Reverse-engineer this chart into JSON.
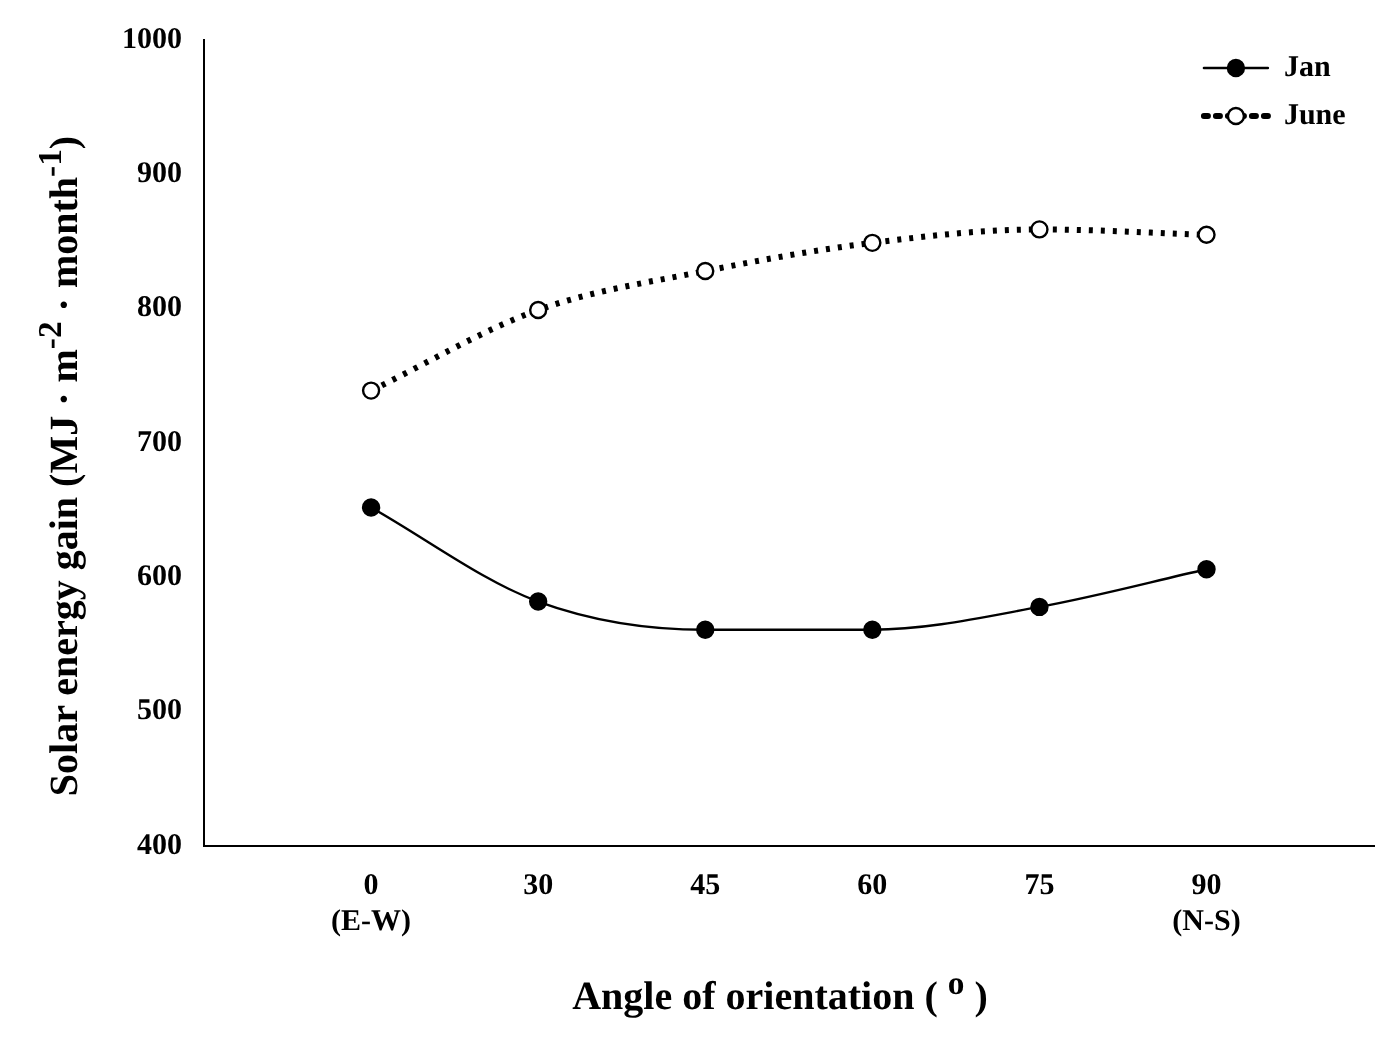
{
  "chart_data": {
    "type": "line",
    "xlabel": "Angle of orientation ( $^{o}$ )",
    "ylabel": "Solar energy gain (MJ · m$^{-2}$ · month$^{-1}$)",
    "categories": [
      "0\n(E-W)",
      "30",
      "45",
      "60",
      "75",
      "90\n(N-S)"
    ],
    "series": [
      {
        "name": "Jan",
        "color": "#000000",
        "values": [
          652,
          582,
          561,
          561,
          578,
          606
        ],
        "line_style": "solid"
      },
      {
        "name": "June",
        "color": "#000000",
        "values": [
          739,
          799,
          828,
          849,
          859,
          855
        ],
        "line_style": "dotted"
      }
    ],
    "ylim": [
      400,
      1000
    ],
    "yticks": [
      400,
      500,
      600,
      700,
      800,
      900,
      1000
    ],
    "grid": false,
    "legend": "top right",
    "marker": "circle"
  }
}
